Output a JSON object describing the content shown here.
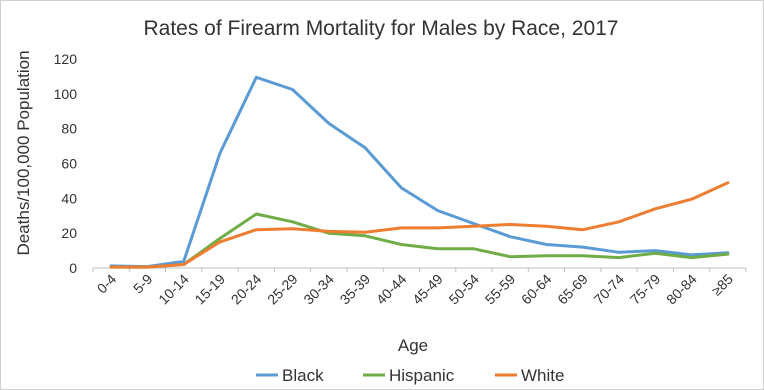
{
  "chart_data": {
    "type": "line",
    "title": "Rates of Firearm Mortality for Males by Race, 2017",
    "xlabel": "Age",
    "ylabel": "Deaths/100,000 Population",
    "ylim": [
      0,
      120
    ],
    "yticks": [
      "0",
      "20",
      "40",
      "60",
      "80",
      "100",
      "120"
    ],
    "grid": false,
    "legend": "bottom",
    "categories": [
      "0-4",
      "5-9",
      "10-14",
      "15-19",
      "20-24",
      "25-29",
      "30-34",
      "35-39",
      "40-44",
      "45-49",
      "50-54",
      "55-59",
      "60-64",
      "65-69",
      "70-74",
      "75-79",
      "80-84",
      "≥85"
    ],
    "series": [
      {
        "name": "Black",
        "color": "#5b9bd5",
        "values": [
          1.2,
          0.8,
          3.8,
          66,
          109.5,
          102.5,
          83,
          69,
          46,
          33,
          25.5,
          18,
          13.5,
          12,
          9,
          10,
          7.5,
          8.8
        ]
      },
      {
        "name": "Hispanic",
        "color": "#70ad47",
        "values": [
          0.5,
          0.5,
          2,
          17,
          31,
          26.5,
          20,
          18.5,
          13.5,
          11,
          11,
          6.5,
          7,
          7,
          6,
          8.5,
          6,
          8
        ]
      },
      {
        "name": "White",
        "color": "#ed7d31",
        "values": [
          0.5,
          0.5,
          2,
          15,
          22,
          22.5,
          21,
          20.5,
          23,
          23,
          24,
          25,
          24,
          22,
          26.5,
          34,
          39.5,
          49
        ]
      }
    ]
  }
}
